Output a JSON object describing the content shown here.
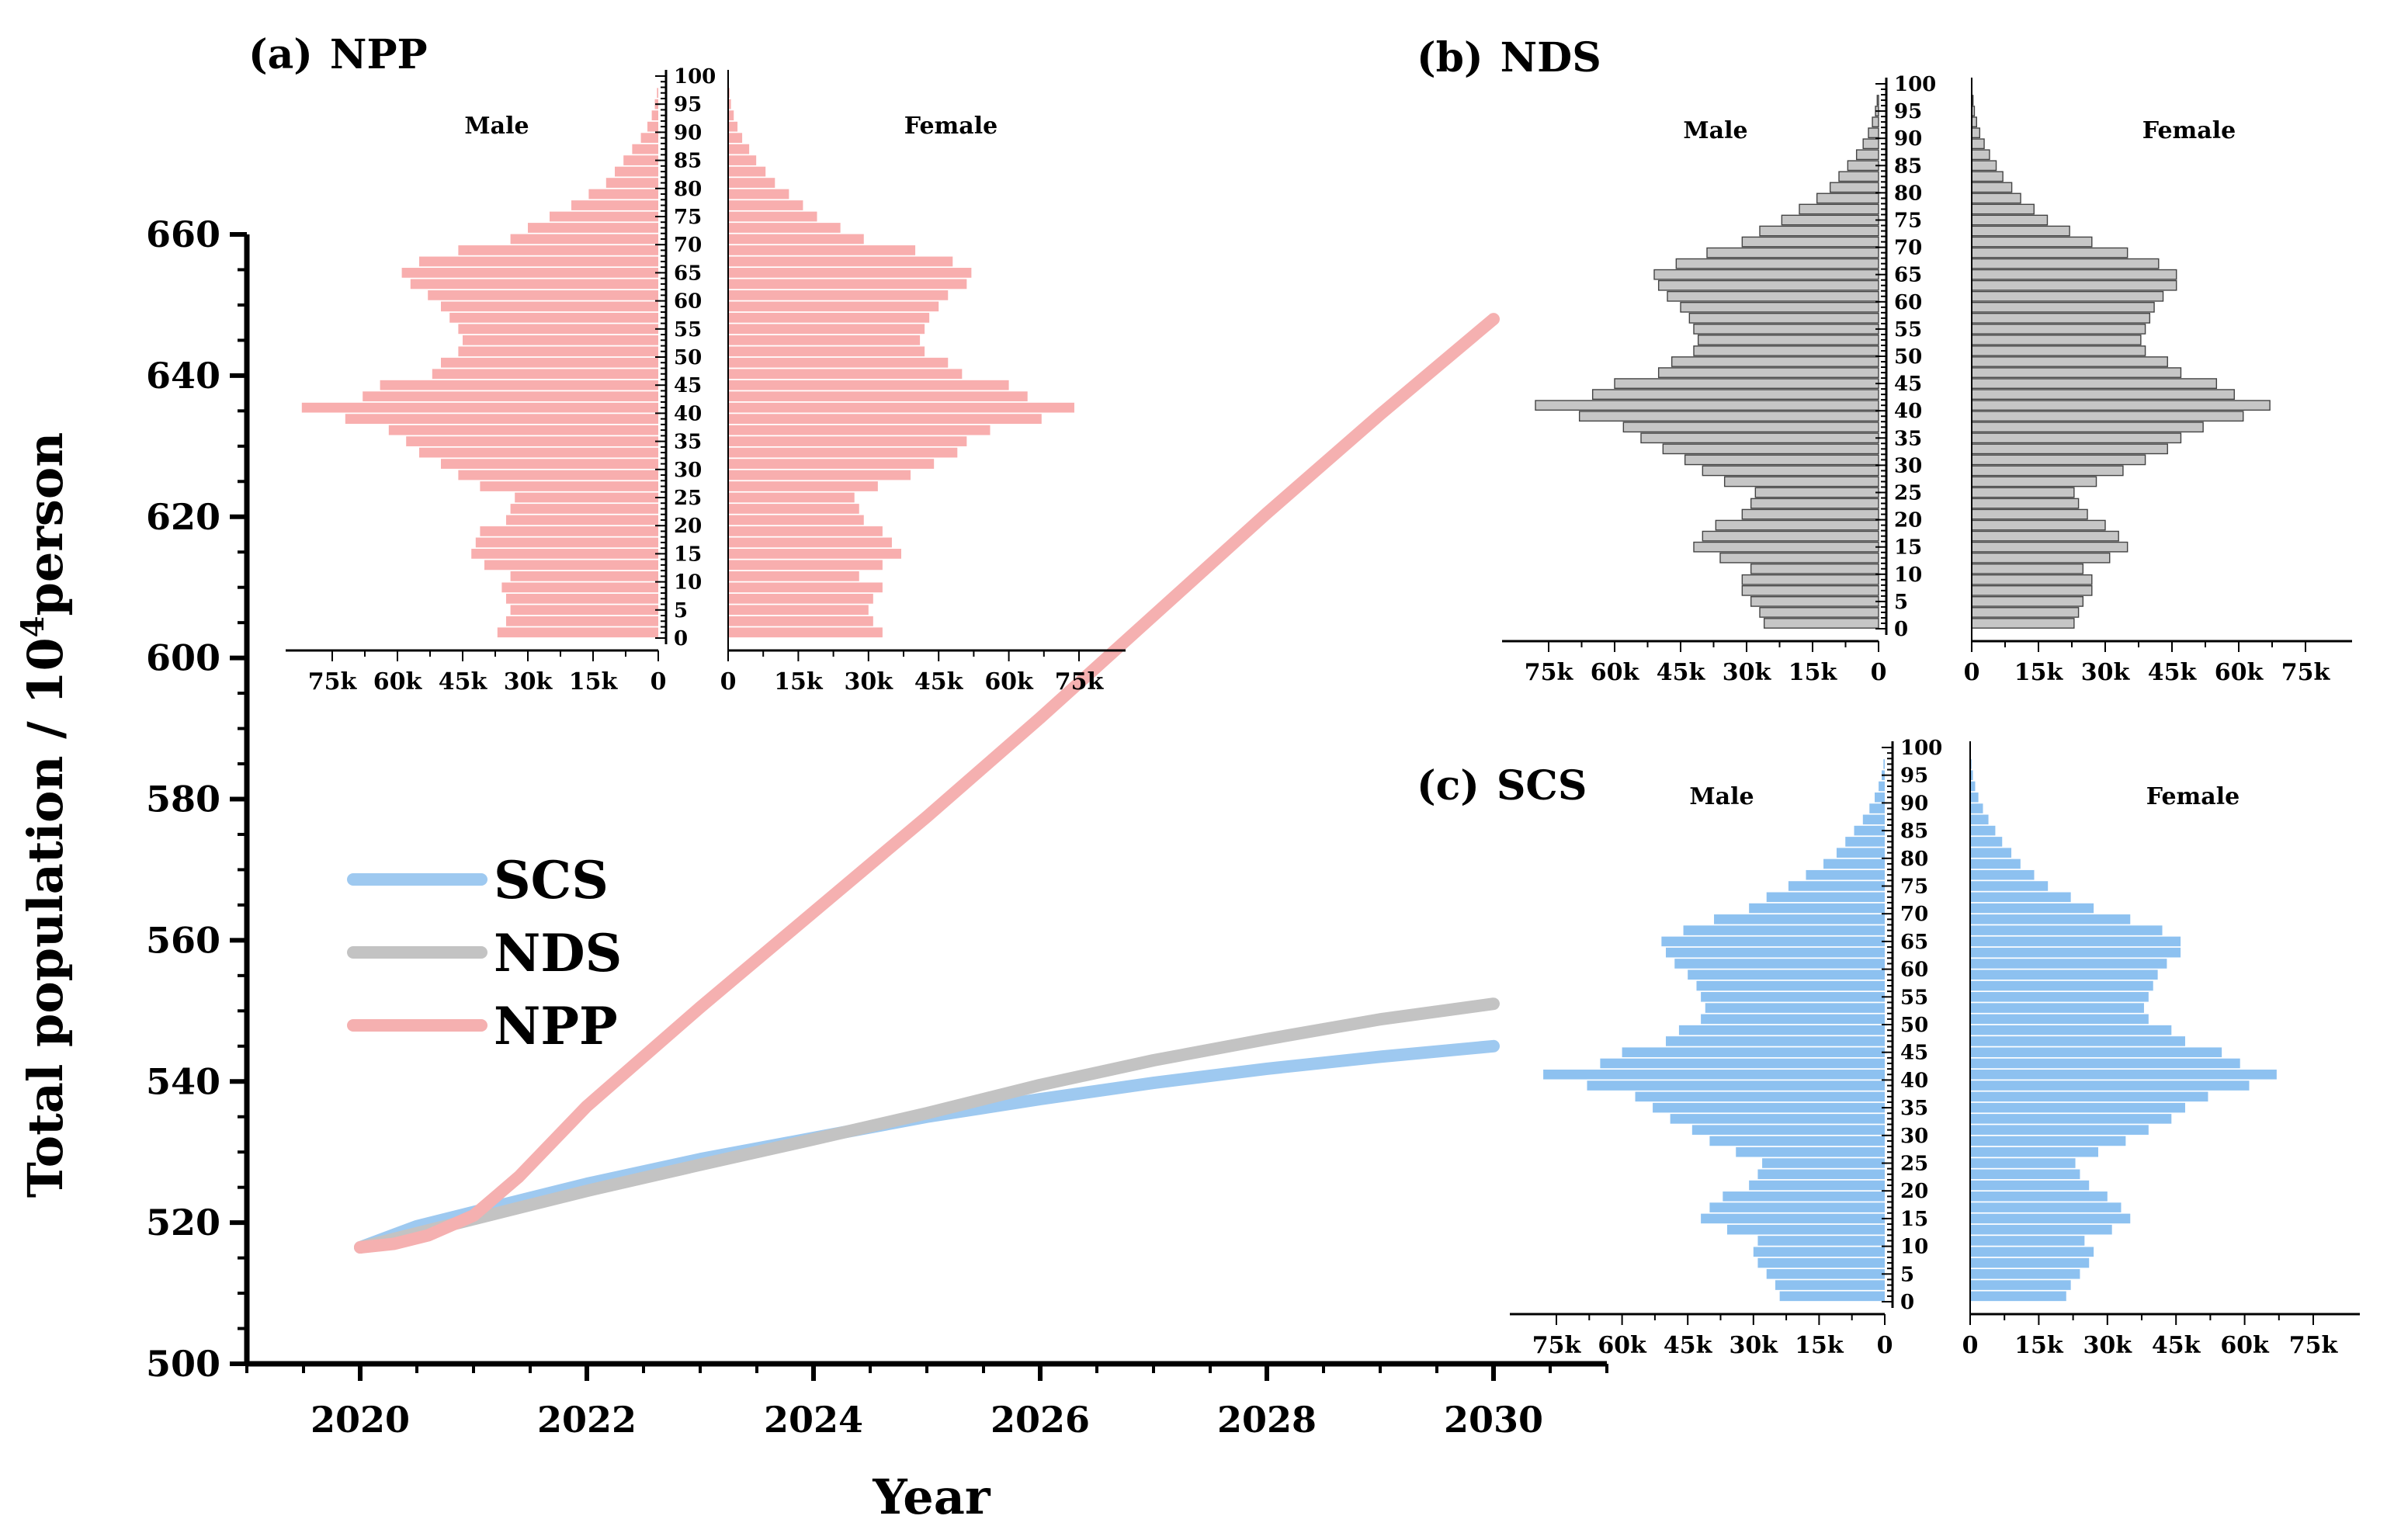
{
  "chart_data": {
    "main": {
      "type": "line",
      "xlabel": "Year",
      "ylabel_prefix": "Total population / 10",
      "ylabel_sup": "4",
      "ylabel_suffix": "person",
      "xlim": [
        2019,
        2031
      ],
      "ylim": [
        500,
        660
      ],
      "xticks": [
        2020,
        2022,
        2024,
        2026,
        2028,
        2030
      ],
      "yticks": [
        500,
        520,
        540,
        560,
        580,
        600,
        620,
        640,
        660
      ],
      "legend_position": "center-left",
      "series": [
        {
          "name": "SCS",
          "color": "#9ec9f0",
          "x": [
            2020,
            2020.5,
            2021,
            2021.5,
            2022,
            2023,
            2024,
            2025,
            2026,
            2027,
            2028,
            2029,
            2030
          ],
          "y": [
            516.5,
            519.5,
            521.5,
            523.5,
            525.5,
            529,
            532,
            535,
            537.5,
            539.8,
            541.8,
            543.5,
            545
          ]
        },
        {
          "name": "NDS",
          "color": "#c3c3c3",
          "x": [
            2020,
            2020.5,
            2021,
            2021.5,
            2022,
            2023,
            2024,
            2025,
            2026,
            2027,
            2028,
            2029,
            2030
          ],
          "y": [
            516.5,
            518.5,
            520.5,
            522.5,
            524.5,
            528.2,
            531.8,
            535.5,
            539.5,
            543,
            546,
            548.8,
            551
          ]
        },
        {
          "name": "NPP",
          "color": "#f5b0b0",
          "x": [
            2020,
            2020.3,
            2020.6,
            2021,
            2021.4,
            2022,
            2023,
            2024,
            2025,
            2026,
            2027,
            2028,
            2029,
            2030
          ],
          "y": [
            516.5,
            517,
            518.2,
            521,
            526.5,
            536.5,
            550.5,
            564,
            577.5,
            591.5,
            606,
            620.5,
            634.5,
            648
          ]
        }
      ]
    },
    "pyramids": [
      {
        "id": "a",
        "title_letter": "(a)",
        "title_name": "NPP",
        "color": "#f8aeae",
        "outline": "#f8aeae",
        "male_label": "Male",
        "female_label": "Female",
        "x_ticks_male": [
          "75k",
          "60k",
          "45k",
          "30k",
          "15k",
          "0"
        ],
        "x_ticks_female": [
          "0",
          "15k",
          "30k",
          "45k",
          "60k",
          "75k"
        ],
        "age_ticks": [
          0,
          5,
          10,
          15,
          20,
          25,
          30,
          35,
          40,
          45,
          50,
          55,
          60,
          65,
          70,
          75,
          80,
          85,
          90,
          95,
          100
        ],
        "ages": [
          0,
          2,
          4,
          6,
          8,
          10,
          12,
          14,
          16,
          18,
          20,
          22,
          24,
          26,
          28,
          30,
          32,
          34,
          36,
          38,
          40,
          42,
          44,
          46,
          48,
          50,
          52,
          54,
          56,
          58,
          60,
          62,
          64,
          66,
          68,
          70,
          72,
          74,
          76,
          78,
          80,
          82,
          84,
          86,
          88,
          90,
          92,
          94,
          96
        ],
        "male": [
          37,
          35,
          34,
          35,
          36,
          34,
          40,
          43,
          42,
          41,
          35,
          34,
          33,
          41,
          46,
          50,
          55,
          58,
          62,
          72,
          82,
          68,
          64,
          52,
          50,
          46,
          45,
          46,
          48,
          50,
          53,
          57,
          59,
          55,
          46,
          34,
          30,
          25,
          20,
          16,
          12,
          10,
          8,
          6,
          4,
          2.5,
          1.5,
          0.8,
          0.3
        ],
        "female": [
          33,
          31,
          30,
          31,
          33,
          28,
          33,
          37,
          35,
          33,
          29,
          28,
          27,
          32,
          39,
          44,
          49,
          51,
          56,
          67,
          74,
          64,
          60,
          50,
          47,
          42,
          41,
          42,
          43,
          45,
          47,
          51,
          52,
          48,
          40,
          29,
          24,
          19,
          16,
          13,
          10,
          8,
          6,
          4.5,
          3,
          2,
          1.2,
          0.6,
          0.3
        ]
      },
      {
        "id": "b",
        "title_letter": "(b)",
        "title_name": "NDS",
        "color": "#c6c6c6",
        "outline": "#444444",
        "male_label": "Male",
        "female_label": "Female",
        "x_ticks_male": [
          "75k",
          "60k",
          "45k",
          "30k",
          "15k",
          "0"
        ],
        "x_ticks_female": [
          "0",
          "15k",
          "30k",
          "45k",
          "60k",
          "75k"
        ],
        "age_ticks": [
          0,
          5,
          10,
          15,
          20,
          25,
          30,
          35,
          40,
          45,
          50,
          55,
          60,
          65,
          70,
          75,
          80,
          85,
          90,
          95,
          100
        ],
        "ages": [
          0,
          2,
          4,
          6,
          8,
          10,
          12,
          14,
          16,
          18,
          20,
          22,
          24,
          26,
          28,
          30,
          32,
          34,
          36,
          38,
          40,
          42,
          44,
          46,
          48,
          50,
          52,
          54,
          56,
          58,
          60,
          62,
          64,
          66,
          68,
          70,
          72,
          74,
          76,
          78,
          80,
          82,
          84,
          86,
          88,
          90,
          92,
          94,
          96
        ],
        "male": [
          26,
          27,
          29,
          31,
          31,
          29,
          36,
          42,
          40,
          37,
          31,
          29,
          28,
          35,
          40,
          44,
          49,
          54,
          58,
          68,
          78,
          65,
          60,
          50,
          47,
          42,
          41,
          42,
          43,
          45,
          48,
          50,
          51,
          46,
          39,
          31,
          27,
          22,
          18,
          14,
          11,
          9,
          7,
          5,
          3.5,
          2.3,
          1.4,
          0.7,
          0.3
        ],
        "female": [
          23,
          24,
          25,
          27,
          27,
          25,
          31,
          35,
          33,
          30,
          26,
          24,
          23,
          28,
          34,
          39,
          44,
          47,
          52,
          61,
          67,
          59,
          55,
          47,
          44,
          39,
          38,
          39,
          40,
          41,
          43,
          46,
          46,
          42,
          35,
          27,
          22,
          17,
          14,
          11,
          9,
          7,
          5.5,
          4,
          2.8,
          1.8,
          1.1,
          0.6,
          0.3
        ]
      },
      {
        "id": "c",
        "title_letter": "(c)",
        "title_name": "SCS",
        "color": "#8dc1f0",
        "outline": "#8dc1f0",
        "male_label": "Male",
        "female_label": "Female",
        "x_ticks_male": [
          "75k",
          "60k",
          "45k",
          "30k",
          "15k",
          "0"
        ],
        "x_ticks_female": [
          "0",
          "15k",
          "30k",
          "45k",
          "60k",
          "75k"
        ],
        "age_ticks": [
          0,
          5,
          10,
          15,
          20,
          25,
          30,
          35,
          40,
          45,
          50,
          55,
          60,
          65,
          70,
          75,
          80,
          85,
          90,
          95,
          100
        ],
        "ages": [
          0,
          2,
          4,
          6,
          8,
          10,
          12,
          14,
          16,
          18,
          20,
          22,
          24,
          26,
          28,
          30,
          32,
          34,
          36,
          38,
          40,
          42,
          44,
          46,
          48,
          50,
          52,
          54,
          56,
          58,
          60,
          62,
          64,
          66,
          68,
          70,
          72,
          74,
          76,
          78,
          80,
          82,
          84,
          86,
          88,
          90,
          92,
          94,
          96
        ],
        "male": [
          24,
          25,
          27,
          29,
          30,
          29,
          36,
          42,
          40,
          37,
          31,
          29,
          28,
          34,
          40,
          44,
          49,
          53,
          57,
          68,
          78,
          65,
          60,
          50,
          47,
          42,
          41,
          42,
          43,
          45,
          48,
          50,
          51,
          46,
          39,
          31,
          27,
          22,
          18,
          14,
          11,
          9,
          7,
          5,
          3.5,
          2.3,
          1.4,
          0.7,
          0.3
        ],
        "female": [
          21,
          22,
          24,
          26,
          27,
          25,
          31,
          35,
          33,
          30,
          26,
          24,
          23,
          28,
          34,
          39,
          44,
          47,
          52,
          61,
          67,
          59,
          55,
          47,
          44,
          39,
          38,
          39,
          40,
          41,
          43,
          46,
          46,
          42,
          35,
          27,
          22,
          17,
          14,
          11,
          9,
          7,
          5.5,
          4,
          2.8,
          1.8,
          1.1,
          0.6,
          0.3
        ]
      }
    ]
  }
}
